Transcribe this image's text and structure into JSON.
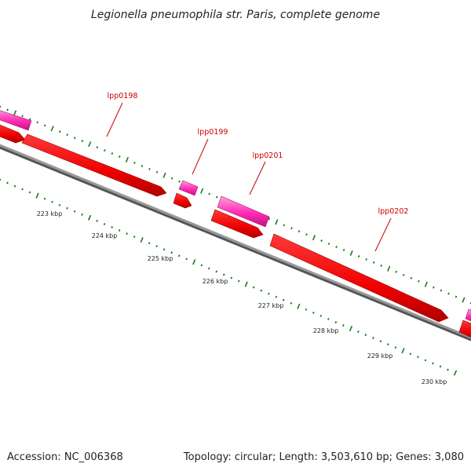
{
  "title": "Legionella pneumophila str. Paris, complete genome",
  "footer": {
    "accession": "Accession: NC_006368",
    "stats": "Topology: circular; Length: 3,503,610 bp; Genes: 3,080"
  },
  "colors": {
    "backbone": "#8c8c8c",
    "backbone_dark": "#555555",
    "cds": "#ff0000",
    "cds_shadow": "#a60000",
    "gene": "#ff2db4",
    "gene_light": "#ff9ee0",
    "tick": "#1a7a1a",
    "label": "#cc0000"
  },
  "ruler": [
    {
      "label": "223 kbp"
    },
    {
      "label": "224 kbp"
    },
    {
      "label": "225 kbp"
    },
    {
      "label": "226 kbp"
    },
    {
      "label": "227 kbp"
    },
    {
      "label": "228 kbp"
    },
    {
      "label": "229 kbp"
    },
    {
      "label": "230 kbp"
    }
  ],
  "gene_labels": [
    {
      "name": "lpp0198"
    },
    {
      "name": "lpp0199"
    },
    {
      "name": "lpp0201"
    },
    {
      "name": "lpp0202"
    }
  ]
}
